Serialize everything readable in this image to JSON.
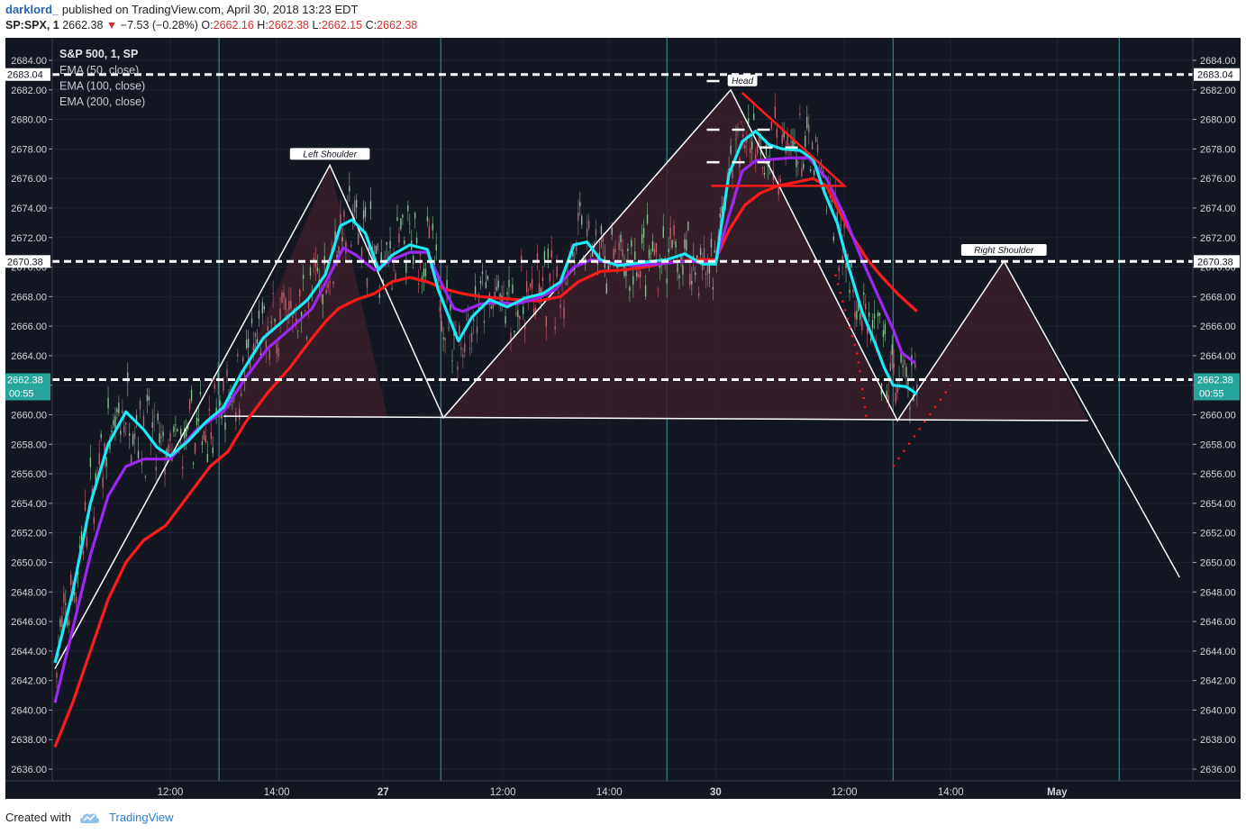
{
  "header": {
    "author": "darklord_",
    "published_text": "published on TradingView.com, April 30, 2018 13:23 EDT",
    "symbol": "SP:SPX, 1",
    "last": "2662.38",
    "change": "−7.53 (−0.28%)",
    "open_label": "O:",
    "open": "2662.16",
    "high_label": "H:",
    "high": "2662.38",
    "low_label": "L:",
    "low": "2662.15",
    "close_label": "C:",
    "close": "2662.38",
    "down_arrow": "▼"
  },
  "legend": {
    "title": "S&P 500, 1, SP",
    "items": [
      "EMA (50, close)",
      "EMA (100, close)",
      "EMA (200, close)"
    ]
  },
  "footer": {
    "created_with": "Created with",
    "brand": "TradingView"
  },
  "colors": {
    "background": "#131722",
    "ema50": "#1de9f6",
    "ema100": "#9c27f0",
    "ema200": "#ff1a1a",
    "pattern_line": "#ffffff",
    "pattern_fill": "#3a1f2a",
    "price_label": "#26a69a",
    "session_line": "#4dd0e1"
  },
  "chart_data": {
    "type": "candlestick",
    "title": "S&P 500, 1, SP",
    "ylim": [
      2635.0,
      2685.0
    ],
    "y_ticks": [
      2636,
      2638,
      2640,
      2642,
      2644,
      2646,
      2648,
      2650,
      2652,
      2654,
      2656,
      2658,
      2660,
      2662,
      2664,
      2666,
      2668,
      2670,
      2672,
      2674,
      2676,
      2678,
      2680,
      2682,
      2684
    ],
    "y_tick_labels": [
      "2636.00",
      "2638.00",
      "2640.00",
      "2642.00",
      "2644.00",
      "2646.00",
      "2648.00",
      "2650.00",
      "2652.00",
      "2654.00",
      "2656.00",
      "2658.00",
      "2660.00",
      "2662.00",
      "2664.00",
      "2666.00",
      "2668.00",
      "2670.00",
      "2672.00",
      "2674.00",
      "2676.00",
      "2678.00",
      "2680.00",
      "2682.00",
      "2684.00"
    ],
    "x_labels": [
      "12:00",
      "14:00",
      "27",
      "12:00",
      "14:00",
      "30",
      "12:00",
      "14:00",
      "May"
    ],
    "x_label_bold": [
      false,
      false,
      true,
      false,
      false,
      true,
      false,
      false,
      true
    ],
    "x_label_index": [
      130,
      250,
      370,
      505,
      625,
      745,
      890,
      1010,
      1130
    ],
    "session_lines_index": [
      185,
      435,
      690,
      945,
      1200
    ],
    "x_index_max": 1280,
    "horizontal_levels": [
      {
        "value": 2683.04,
        "label": "2683.04"
      },
      {
        "value": 2670.38,
        "label": "2670.38"
      },
      {
        "value": 2662.38,
        "label": "2662.38",
        "sublabel": "00:55",
        "current": true
      }
    ],
    "pattern_labels": {
      "left_shoulder": "Left Shoulder",
      "head": "Head",
      "right_shoulder": "Right Shoulder"
    },
    "pattern_points": [
      {
        "i": 0,
        "v": 2642.8
      },
      {
        "i": 310,
        "v": 2676.9
      },
      {
        "i": 438,
        "v": 2659.8
      },
      {
        "i": 762,
        "v": 2682.0
      },
      {
        "i": 950,
        "v": 2659.6
      },
      {
        "i": 1070,
        "v": 2670.4
      },
      {
        "i": 1268,
        "v": 2649.0
      }
    ],
    "neckline": [
      {
        "i": 190,
        "v": 2659.9
      },
      {
        "i": 1165,
        "v": 2659.6
      }
    ],
    "ema50": [
      [
        0,
        2643.2
      ],
      [
        20,
        2648
      ],
      [
        40,
        2654
      ],
      [
        60,
        2658
      ],
      [
        80,
        2660.2
      ],
      [
        100,
        2659
      ],
      [
        115,
        2657.8
      ],
      [
        130,
        2657.2
      ],
      [
        150,
        2658.2
      ],
      [
        170,
        2659.5
      ],
      [
        190,
        2660.5
      ],
      [
        210,
        2662.8
      ],
      [
        235,
        2665.2
      ],
      [
        260,
        2666.5
      ],
      [
        285,
        2667.8
      ],
      [
        305,
        2669.5
      ],
      [
        322,
        2672.8
      ],
      [
        335,
        2673.2
      ],
      [
        350,
        2672.3
      ],
      [
        365,
        2669.8
      ],
      [
        380,
        2670.8
      ],
      [
        400,
        2671.5
      ],
      [
        420,
        2671.2
      ],
      [
        432,
        2668.5
      ],
      [
        445,
        2666.5
      ],
      [
        455,
        2665.0
      ],
      [
        470,
        2666.6
      ],
      [
        490,
        2667.8
      ],
      [
        510,
        2667.3
      ],
      [
        530,
        2667.9
      ],
      [
        550,
        2668.2
      ],
      [
        570,
        2669.0
      ],
      [
        585,
        2671.5
      ],
      [
        600,
        2671.7
      ],
      [
        615,
        2670.5
      ],
      [
        635,
        2670.1
      ],
      [
        660,
        2670.3
      ],
      [
        690,
        2670.5
      ],
      [
        710,
        2670.9
      ],
      [
        730,
        2670.2
      ],
      [
        745,
        2670.2
      ],
      [
        760,
        2676.3
      ],
      [
        775,
        2678.5
      ],
      [
        790,
        2679.2
      ],
      [
        805,
        2678.3
      ],
      [
        820,
        2678.0
      ],
      [
        840,
        2677.9
      ],
      [
        855,
        2677.3
      ],
      [
        868,
        2675.0
      ],
      [
        882,
        2673.0
      ],
      [
        895,
        2670.0
      ],
      [
        910,
        2667.0
      ],
      [
        925,
        2664.8
      ],
      [
        935,
        2663.2
      ],
      [
        945,
        2662.0
      ],
      [
        960,
        2661.9
      ],
      [
        972,
        2661.4
      ]
    ],
    "ema100": [
      [
        0,
        2640.5
      ],
      [
        20,
        2645.5
      ],
      [
        40,
        2650.5
      ],
      [
        60,
        2654.5
      ],
      [
        80,
        2656.5
      ],
      [
        100,
        2657.0
      ],
      [
        130,
        2657.0
      ],
      [
        160,
        2659.0
      ],
      [
        190,
        2660.2
      ],
      [
        215,
        2662.5
      ],
      [
        240,
        2664.5
      ],
      [
        265,
        2665.8
      ],
      [
        290,
        2667.2
      ],
      [
        310,
        2669.5
      ],
      [
        325,
        2671.3
      ],
      [
        340,
        2670.8
      ],
      [
        360,
        2669.8
      ],
      [
        380,
        2670.5
      ],
      [
        400,
        2671.0
      ],
      [
        420,
        2671.0
      ],
      [
        435,
        2669.0
      ],
      [
        450,
        2667.2
      ],
      [
        460,
        2667.0
      ],
      [
        480,
        2667.5
      ],
      [
        500,
        2667.6
      ],
      [
        520,
        2667.5
      ],
      [
        545,
        2667.9
      ],
      [
        565,
        2668.5
      ],
      [
        585,
        2670.0
      ],
      [
        605,
        2670.5
      ],
      [
        625,
        2670.3
      ],
      [
        650,
        2670.1
      ],
      [
        680,
        2670.2
      ],
      [
        710,
        2670.4
      ],
      [
        745,
        2670.3
      ],
      [
        760,
        2673.5
      ],
      [
        775,
        2676.5
      ],
      [
        790,
        2677.2
      ],
      [
        810,
        2677.3
      ],
      [
        830,
        2677.4
      ],
      [
        850,
        2677.4
      ],
      [
        870,
        2676.0
      ],
      [
        890,
        2673.5
      ],
      [
        910,
        2670.5
      ],
      [
        930,
        2667.8
      ],
      [
        945,
        2665.8
      ],
      [
        955,
        2664.2
      ],
      [
        970,
        2663.5
      ]
    ],
    "ema200": [
      [
        0,
        2637.5
      ],
      [
        20,
        2640.5
      ],
      [
        40,
        2644.0
      ],
      [
        60,
        2647.5
      ],
      [
        80,
        2650.0
      ],
      [
        100,
        2651.5
      ],
      [
        125,
        2652.5
      ],
      [
        150,
        2654.5
      ],
      [
        175,
        2656.5
      ],
      [
        195,
        2657.5
      ],
      [
        215,
        2659.5
      ],
      [
        240,
        2661.5
      ],
      [
        265,
        2663.2
      ],
      [
        290,
        2665.2
      ],
      [
        305,
        2666.3
      ],
      [
        320,
        2667.2
      ],
      [
        340,
        2667.8
      ],
      [
        360,
        2668.2
      ],
      [
        380,
        2669.0
      ],
      [
        400,
        2669.3
      ],
      [
        420,
        2669.0
      ],
      [
        440,
        2668.5
      ],
      [
        460,
        2668.2
      ],
      [
        480,
        2668.0
      ],
      [
        500,
        2667.9
      ],
      [
        520,
        2667.8
      ],
      [
        545,
        2667.7
      ],
      [
        570,
        2668.0
      ],
      [
        590,
        2669.0
      ],
      [
        615,
        2669.7
      ],
      [
        640,
        2669.8
      ],
      [
        665,
        2670.0
      ],
      [
        690,
        2670.3
      ],
      [
        720,
        2670.5
      ],
      [
        745,
        2670.5
      ],
      [
        760,
        2672.5
      ],
      [
        778,
        2674.2
      ],
      [
        795,
        2675.0
      ],
      [
        815,
        2675.5
      ],
      [
        840,
        2675.8
      ],
      [
        855,
        2676.0
      ],
      [
        870,
        2675.5
      ],
      [
        885,
        2673.7
      ],
      [
        900,
        2672.0
      ],
      [
        915,
        2670.6
      ],
      [
        930,
        2669.5
      ],
      [
        950,
        2668.2
      ],
      [
        972,
        2667.0
      ]
    ]
  }
}
